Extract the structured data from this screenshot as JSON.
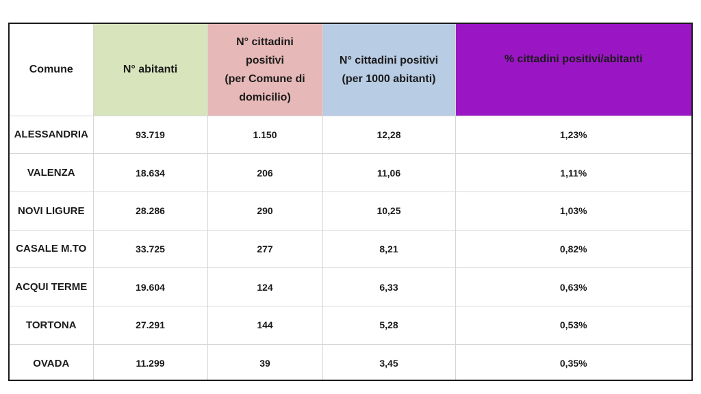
{
  "table": {
    "headers": {
      "comune": "Comune",
      "abitanti": "N° abitanti",
      "positivi": [
        "N° cittadini",
        "positivi",
        "(per Comune di",
        "domicilio)"
      ],
      "per1000": [
        "N° cittadini positivi",
        "(per 1000 abitanti)"
      ],
      "percent": "% cittadini positivi/abitanti"
    },
    "header_colors": {
      "abitanti": "#d8e4bc",
      "positivi": "#e6b8b7",
      "per1000": "#b8cce4",
      "percent": "#9a16c4"
    },
    "rows": [
      {
        "comune": "ALESSANDRIA",
        "abitanti": "93.719",
        "positivi": "1.150",
        "per1000": "12,28",
        "percent": "1,23%"
      },
      {
        "comune": "VALENZA",
        "abitanti": "18.634",
        "positivi": "206",
        "per1000": "11,06",
        "percent": "1,11%"
      },
      {
        "comune": "NOVI LIGURE",
        "abitanti": "28.286",
        "positivi": "290",
        "per1000": "10,25",
        "percent": "1,03%"
      },
      {
        "comune": "CASALE M.TO",
        "abitanti": "33.725",
        "positivi": "277",
        "per1000": "8,21",
        "percent": "0,82%"
      },
      {
        "comune": "ACQUI TERME",
        "abitanti": "19.604",
        "positivi": "124",
        "per1000": "6,33",
        "percent": "0,63%"
      },
      {
        "comune": "TORTONA",
        "abitanti": "27.291",
        "positivi": "144",
        "per1000": "5,28",
        "percent": "0,53%"
      },
      {
        "comune": "OVADA",
        "abitanti": "11.299",
        "positivi": "39",
        "per1000": "3,45",
        "percent": "0,35%"
      }
    ]
  }
}
